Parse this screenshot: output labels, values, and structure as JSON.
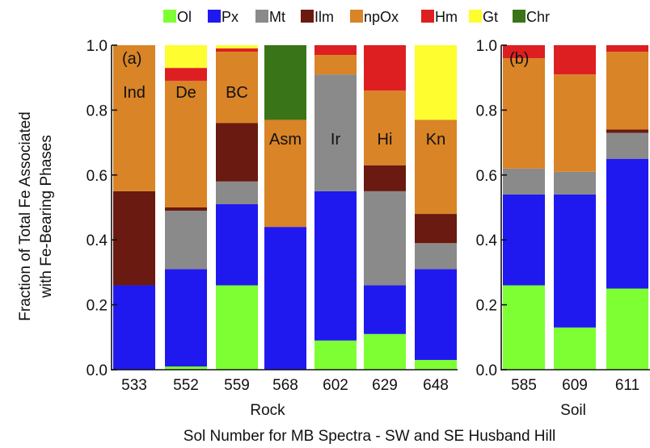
{
  "legend": [
    {
      "name": "Ol",
      "color": "#7dff33"
    },
    {
      "name": "Px",
      "color": "#1f19f0"
    },
    {
      "name": "Mt",
      "color": "#8a8a8a"
    },
    {
      "name": "Ilm",
      "color": "#6a1a10"
    },
    {
      "name": "npOx",
      "color": "#d98426"
    },
    {
      "name": "Hm",
      "color": "#dd1f22"
    },
    {
      "name": "Gt",
      "color": "#fdfd30"
    },
    {
      "name": "Chr",
      "color": "#3a7418"
    }
  ],
  "ylabel_line1": "Fraction of Total Fe Associated",
  "ylabel_line2": "with Fe-Bearing Phases",
  "xlabel": "Sol Number for MB Spectra - SW and SE Husband Hill",
  "yticks": [
    "0.0",
    "0.2",
    "0.4",
    "0.6",
    "0.8",
    "1.0"
  ],
  "chart_data": [
    {
      "type": "bar",
      "stacked": true,
      "panel": "(a)",
      "group_label": "Rock",
      "categories": [
        "533",
        "552",
        "559",
        "568",
        "602",
        "629",
        "648"
      ],
      "bar_labels": [
        "Ind",
        "De",
        "BC",
        "Asm",
        "Ir",
        "Hi",
        "Kn"
      ],
      "ylim": [
        0,
        1
      ],
      "series": [
        {
          "name": "Ol",
          "values": [
            0.0,
            0.01,
            0.26,
            0.0,
            0.09,
            0.11,
            0.03
          ]
        },
        {
          "name": "Px",
          "values": [
            0.26,
            0.3,
            0.25,
            0.44,
            0.46,
            0.15,
            0.28
          ]
        },
        {
          "name": "Mt",
          "values": [
            0.0,
            0.18,
            0.07,
            0.0,
            0.36,
            0.29,
            0.08
          ]
        },
        {
          "name": "Ilm",
          "values": [
            0.29,
            0.01,
            0.18,
            0.0,
            0.0,
            0.08,
            0.09
          ]
        },
        {
          "name": "npOx",
          "values": [
            0.45,
            0.39,
            0.22,
            0.33,
            0.06,
            0.23,
            0.29
          ]
        },
        {
          "name": "Hm",
          "values": [
            0.0,
            0.04,
            0.01,
            0.0,
            0.03,
            0.14,
            0.0
          ]
        },
        {
          "name": "Gt",
          "values": [
            0.0,
            0.07,
            0.01,
            0.0,
            0.0,
            0.0,
            0.23
          ]
        },
        {
          "name": "Chr",
          "values": [
            0.0,
            0.0,
            0.0,
            0.23,
            0.0,
            0.0,
            0.0
          ]
        }
      ]
    },
    {
      "type": "bar",
      "stacked": true,
      "panel": "(b)",
      "group_label": "Soil",
      "categories": [
        "585",
        "609",
        "611"
      ],
      "bar_labels": [
        "",
        "",
        ""
      ],
      "ylim": [
        0,
        1
      ],
      "series": [
        {
          "name": "Ol",
          "values": [
            0.26,
            0.13,
            0.25
          ]
        },
        {
          "name": "Px",
          "values": [
            0.28,
            0.41,
            0.4
          ]
        },
        {
          "name": "Mt",
          "values": [
            0.08,
            0.07,
            0.08
          ]
        },
        {
          "name": "Ilm",
          "values": [
            0.0,
            0.0,
            0.01
          ]
        },
        {
          "name": "npOx",
          "values": [
            0.34,
            0.3,
            0.24
          ]
        },
        {
          "name": "Hm",
          "values": [
            0.04,
            0.09,
            0.02
          ]
        },
        {
          "name": "Gt",
          "values": [
            0.0,
            0.0,
            0.0
          ]
        },
        {
          "name": "Chr",
          "values": [
            0.0,
            0.0,
            0.0
          ]
        }
      ]
    }
  ]
}
